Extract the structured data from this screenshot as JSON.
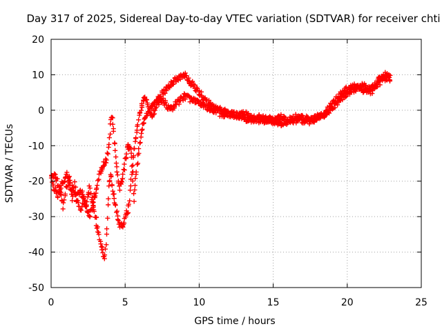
{
  "chart_data": {
    "type": "scatter",
    "title": "Day 317 of 2025, Sidereal Day-to-day VTEC variation (SDTVAR) for receiver chti",
    "xlabel": "GPS time / hours",
    "ylabel": "SDTVAR / TECUs",
    "xlim": [
      0,
      25
    ],
    "ylim": [
      -50,
      20
    ],
    "xticks": [
      0,
      5,
      10,
      15,
      20,
      25
    ],
    "yticks": [
      -50,
      -40,
      -30,
      -20,
      -10,
      0,
      10,
      20
    ],
    "xtick_labels": [
      "0",
      "5",
      "10",
      "15",
      "20",
      "25"
    ],
    "ytick_labels": [
      "-50",
      "-40",
      "-30",
      "-20",
      "-10",
      "0",
      "10",
      "20"
    ],
    "grid": true,
    "marker": "plus",
    "series": [
      {
        "name": "SDTVAR",
        "color": "#ff0000",
        "trace_a": [
          [
            0.0,
            -18
          ],
          [
            0.3,
            -19
          ],
          [
            0.6,
            -22
          ],
          [
            0.8,
            -27
          ],
          [
            1.0,
            -22
          ],
          [
            1.2,
            -20
          ],
          [
            1.4,
            -25
          ],
          [
            1.6,
            -21
          ],
          [
            1.8,
            -26
          ],
          [
            2.0,
            -28
          ],
          [
            2.2,
            -24
          ],
          [
            2.4,
            -27
          ],
          [
            2.6,
            -22
          ],
          [
            2.8,
            -26
          ],
          [
            3.0,
            -30
          ],
          [
            3.2,
            -35
          ],
          [
            3.4,
            -38
          ],
          [
            3.5,
            -40
          ],
          [
            3.6,
            -42
          ],
          [
            3.7,
            -38
          ],
          [
            3.8,
            -30
          ],
          [
            3.9,
            -22
          ],
          [
            4.0,
            -18
          ],
          [
            4.2,
            -23
          ],
          [
            4.4,
            -28
          ],
          [
            4.6,
            -32
          ],
          [
            4.8,
            -33
          ],
          [
            5.0,
            -30
          ],
          [
            5.2,
            -28
          ],
          [
            5.3,
            -25
          ],
          [
            5.5,
            -15
          ],
          [
            5.7,
            -8
          ],
          [
            5.9,
            -3
          ],
          [
            6.1,
            1
          ],
          [
            6.3,
            3
          ],
          [
            6.5,
            2
          ],
          [
            6.8,
            -2
          ],
          [
            7.1,
            1
          ],
          [
            7.5,
            3
          ],
          [
            8.0,
            0
          ],
          [
            8.5,
            2
          ],
          [
            9.0,
            4
          ],
          [
            9.5,
            3
          ],
          [
            10.0,
            2
          ],
          [
            10.5,
            1
          ],
          [
            11.0,
            0
          ],
          [
            11.5,
            -1
          ],
          [
            12.0,
            -1
          ],
          [
            12.5,
            -2
          ],
          [
            13.0,
            -1
          ],
          [
            13.5,
            -2
          ],
          [
            14.0,
            -3
          ],
          [
            14.5,
            -2
          ],
          [
            15.0,
            -3
          ],
          [
            15.5,
            -2
          ],
          [
            16.0,
            -3
          ],
          [
            16.5,
            -3
          ],
          [
            17.0,
            -2
          ],
          [
            17.5,
            -3
          ],
          [
            18.0,
            -2
          ],
          [
            18.5,
            -1
          ],
          [
            19.0,
            1
          ],
          [
            19.5,
            3
          ],
          [
            20.0,
            5
          ],
          [
            20.5,
            6
          ],
          [
            21.0,
            7
          ],
          [
            21.5,
            6
          ],
          [
            22.0,
            8
          ],
          [
            22.3,
            9
          ],
          [
            22.6,
            10
          ],
          [
            22.9,
            9
          ]
        ],
        "trace_b": [
          [
            0.0,
            -19
          ],
          [
            0.2,
            -22
          ],
          [
            0.5,
            -24
          ],
          [
            0.8,
            -20
          ],
          [
            1.1,
            -18
          ],
          [
            1.4,
            -22
          ],
          [
            1.7,
            -25
          ],
          [
            2.0,
            -22
          ],
          [
            2.3,
            -27
          ],
          [
            2.6,
            -30
          ],
          [
            2.9,
            -25
          ],
          [
            3.1,
            -22
          ],
          [
            3.3,
            -18
          ],
          [
            3.5,
            -16
          ],
          [
            3.7,
            -14
          ],
          [
            3.9,
            -10
          ],
          [
            4.0,
            -4
          ],
          [
            4.1,
            -2
          ],
          [
            4.2,
            -5
          ],
          [
            4.3,
            -10
          ],
          [
            4.4,
            -15
          ],
          [
            4.5,
            -18
          ],
          [
            4.6,
            -22
          ],
          [
            4.8,
            -20
          ],
          [
            5.0,
            -14
          ],
          [
            5.2,
            -10
          ],
          [
            5.4,
            -12
          ],
          [
            5.5,
            -18
          ],
          [
            5.6,
            -25
          ],
          [
            5.7,
            -20
          ],
          [
            5.9,
            -12
          ],
          [
            6.1,
            -6
          ],
          [
            6.3,
            -2
          ],
          [
            6.6,
            0
          ],
          [
            7.0,
            2
          ],
          [
            7.4,
            4
          ],
          [
            7.8,
            6
          ],
          [
            8.2,
            8
          ],
          [
            8.6,
            9
          ],
          [
            9.0,
            10
          ],
          [
            9.4,
            8
          ],
          [
            9.8,
            6
          ],
          [
            10.2,
            4
          ],
          [
            10.6,
            2
          ],
          [
            11.0,
            1
          ],
          [
            11.5,
            0
          ],
          [
            12.0,
            -1
          ],
          [
            12.5,
            -1
          ],
          [
            13.0,
            -2
          ],
          [
            13.5,
            -3
          ],
          [
            14.0,
            -2
          ],
          [
            14.5,
            -3
          ],
          [
            15.0,
            -3
          ],
          [
            15.5,
            -4
          ],
          [
            16.0,
            -3
          ],
          [
            16.5,
            -2
          ],
          [
            17.0,
            -3
          ],
          [
            17.5,
            -3
          ],
          [
            18.0,
            -2
          ],
          [
            18.5,
            -1
          ],
          [
            19.0,
            2
          ],
          [
            19.5,
            4
          ],
          [
            20.0,
            6
          ],
          [
            20.5,
            7
          ],
          [
            21.0,
            6
          ],
          [
            21.5,
            5
          ],
          [
            22.0,
            7
          ],
          [
            22.5,
            9
          ],
          [
            22.9,
            9
          ]
        ]
      }
    ]
  }
}
